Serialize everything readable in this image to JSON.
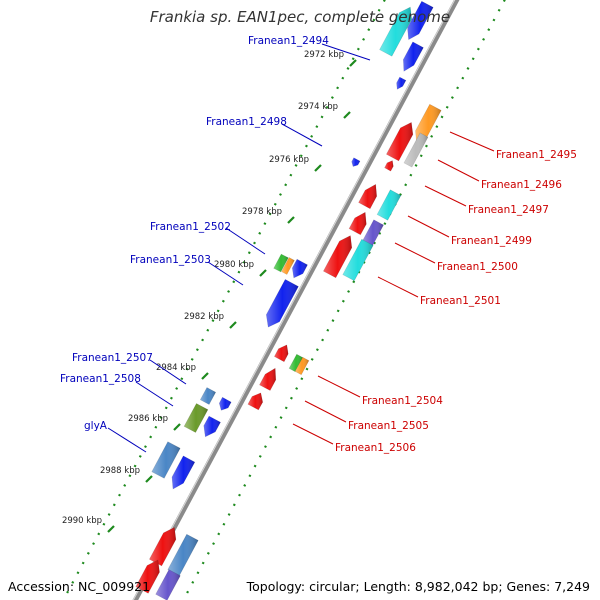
{
  "title": "Frankia sp. EAN1pec, complete genome",
  "accession": "Accession: NC_009921",
  "summary": "Topology: circular; Length: 8,982,042 bp; Genes: 7,249",
  "colors": {
    "backbone": "#8a8a8a",
    "tick": "#1e8a1e",
    "label_forward": "#0000bb",
    "label_reverse": "#cc0000",
    "red": "#ee1111",
    "blue": "#1122ee",
    "cyan": "#22dddd",
    "orange": "#ff9922",
    "green": "#33bb33",
    "steelblue": "#4a86c6",
    "olive": "#6a9a2a",
    "purple": "#6655cc",
    "grey": "#bbbbbb"
  },
  "ticks": [
    "2972 kbp",
    "2974 kbp",
    "2976 kbp",
    "2978 kbp",
    "2980 kbp",
    "2982 kbp",
    "2984 kbp",
    "2986 kbp",
    "2988 kbp",
    "2990 kbp"
  ],
  "labels_forward": [
    "Franean1_2494",
    "Franean1_2498",
    "Franean1_2502",
    "Franean1_2503",
    "Franean1_2507",
    "Franean1_2508",
    "glyA"
  ],
  "labels_reverse": [
    "Franean1_2495",
    "Franean1_2496",
    "Franean1_2497",
    "Franean1_2499",
    "Franean1_2500",
    "Franean1_2501",
    "Franean1_2504",
    "Franean1_2505",
    "Franean1_2506"
  ]
}
